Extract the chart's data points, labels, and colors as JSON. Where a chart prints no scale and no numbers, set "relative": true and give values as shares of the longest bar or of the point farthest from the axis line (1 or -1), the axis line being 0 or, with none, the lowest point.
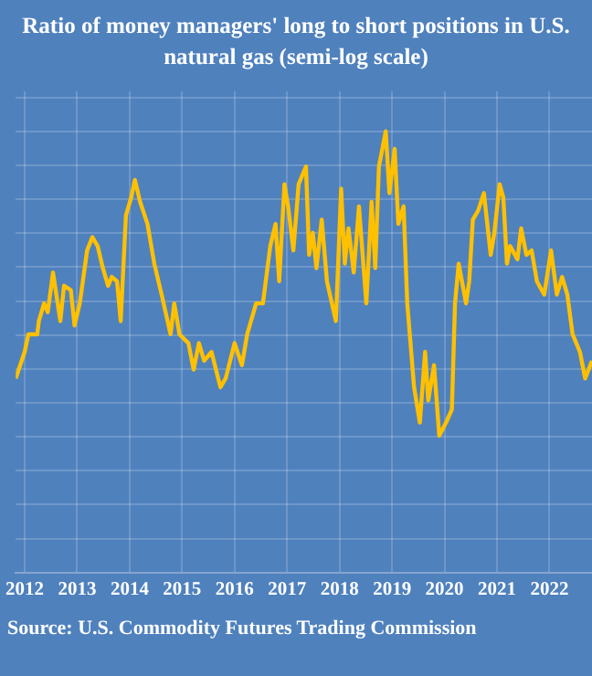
{
  "chart_data": {
    "type": "line",
    "title": "Ratio of money managers' long to short positions in U.S.",
    "subtitle": "natural gas (semi-log scale)",
    "annotations": [
      "Source: U.S. Commodity Futures Trading Commission"
    ],
    "relative": true,
    "grid": true,
    "legend": false,
    "marker": "none",
    "line_style": "solid",
    "xlim": [
      2011.83,
      2022.81
    ],
    "xticks": [
      2012,
      2013,
      2014,
      2015,
      2016,
      2017,
      2018,
      2019,
      2020,
      2021,
      2022
    ],
    "series": [
      {
        "color": "#ffc000",
        "x": [
          2011.83,
          2012.0,
          2012.07,
          2012.24,
          2012.27,
          2012.37,
          2012.44,
          2012.54,
          2012.68,
          2012.75,
          2012.88,
          2012.95,
          2013.05,
          2013.19,
          2013.29,
          2013.39,
          2013.49,
          2013.59,
          2013.66,
          2013.76,
          2013.83,
          2013.93,
          2014.03,
          2014.1,
          2014.2,
          2014.34,
          2014.47,
          2014.61,
          2014.78,
          2014.85,
          2014.95,
          2015.12,
          2015.22,
          2015.32,
          2015.42,
          2015.56,
          2015.73,
          2015.83,
          2016.0,
          2016.14,
          2016.24,
          2016.41,
          2016.54,
          2016.68,
          2016.78,
          2016.85,
          2016.95,
          2017.02,
          2017.12,
          2017.22,
          2017.36,
          2017.42,
          2017.49,
          2017.56,
          2017.66,
          2017.76,
          2017.93,
          2018.03,
          2018.1,
          2018.17,
          2018.27,
          2018.37,
          2018.51,
          2018.61,
          2018.68,
          2018.75,
          2018.88,
          2018.95,
          2019.05,
          2019.12,
          2019.22,
          2019.29,
          2019.42,
          2019.53,
          2019.63,
          2019.69,
          2019.8,
          2019.9,
          2020.03,
          2020.14,
          2020.2,
          2020.27,
          2020.41,
          2020.47,
          2020.54,
          2020.64,
          2020.75,
          2020.88,
          2020.95,
          2021.05,
          2021.12,
          2021.19,
          2021.25,
          2021.39,
          2021.46,
          2021.56,
          2021.66,
          2021.76,
          2021.9,
          2022.03,
          2022.14,
          2022.24,
          2022.34,
          2022.44,
          2022.58,
          2022.68,
          2022.81
        ],
        "values": [
          0.44,
          0.5,
          0.54,
          0.54,
          0.57,
          0.61,
          0.59,
          0.68,
          0.57,
          0.65,
          0.64,
          0.56,
          0.61,
          0.73,
          0.76,
          0.74,
          0.69,
          0.65,
          0.67,
          0.66,
          0.57,
          0.81,
          0.85,
          0.89,
          0.84,
          0.79,
          0.7,
          0.63,
          0.54,
          0.61,
          0.54,
          0.52,
          0.46,
          0.52,
          0.48,
          0.5,
          0.42,
          0.44,
          0.52,
          0.47,
          0.54,
          0.61,
          0.61,
          0.74,
          0.79,
          0.66,
          0.88,
          0.83,
          0.73,
          0.88,
          0.92,
          0.72,
          0.77,
          0.69,
          0.8,
          0.66,
          0.57,
          0.87,
          0.7,
          0.78,
          0.68,
          0.83,
          0.61,
          0.84,
          0.69,
          0.92,
          1,
          0.86,
          0.96,
          0.79,
          0.83,
          0.61,
          0.42,
          0.34,
          0.5,
          0.39,
          0.47,
          0.31,
          0.34,
          0.37,
          0.61,
          0.7,
          0.61,
          0.66,
          0.8,
          0.82,
          0.86,
          0.72,
          0.77,
          0.88,
          0.85,
          0.7,
          0.74,
          0.71,
          0.78,
          0.72,
          0.73,
          0.66,
          0.63,
          0.73,
          0.63,
          0.67,
          0.63,
          0.54,
          0.5,
          0.44,
          0.48
        ]
      }
    ]
  }
}
